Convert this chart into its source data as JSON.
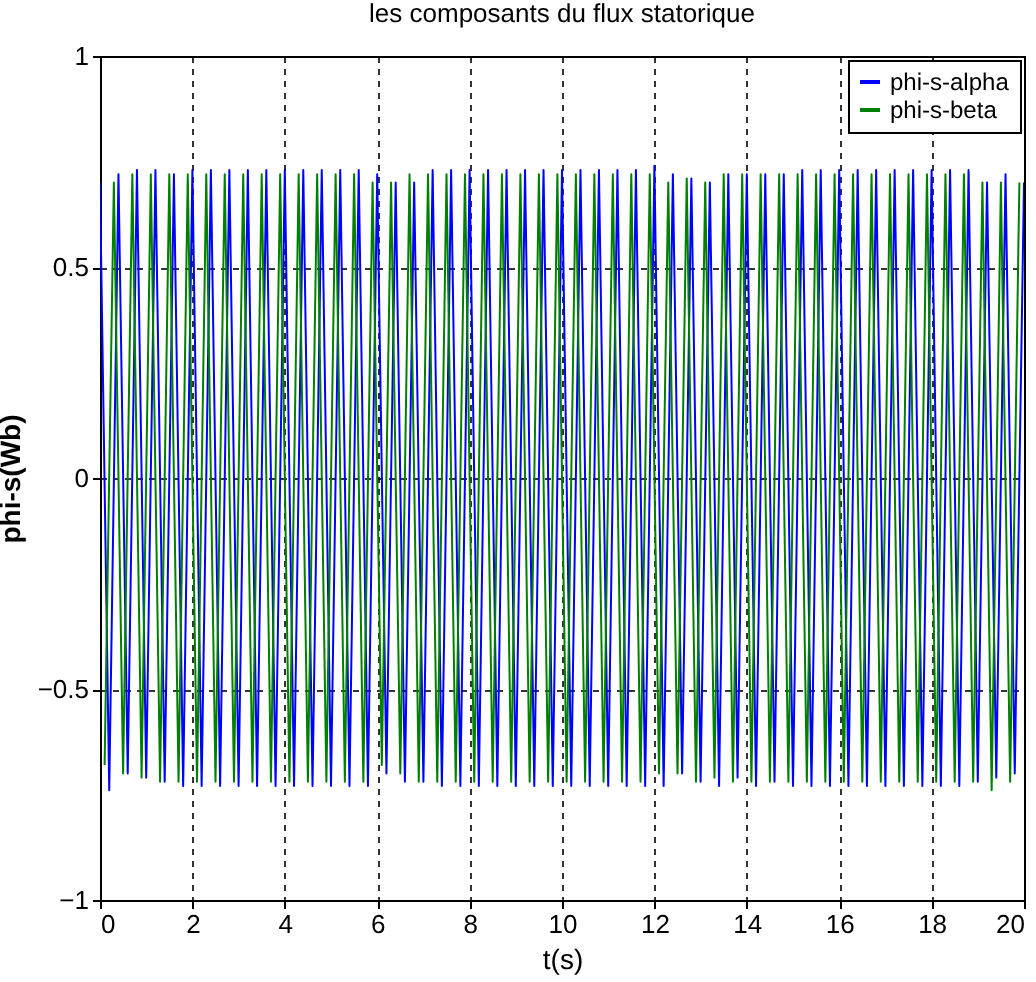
{
  "chart_data": {
    "type": "line",
    "title": "les composants du flux statorique",
    "xlabel": "t(s)",
    "ylabel": "phi-s(Wb)",
    "xlim": [
      0,
      20
    ],
    "ylim": [
      -1,
      1
    ],
    "xticks": [
      0,
      2,
      4,
      6,
      8,
      10,
      12,
      14,
      16,
      18,
      20
    ],
    "yticks": [
      -1,
      -0.5,
      0,
      0.5,
      1
    ],
    "grid": true,
    "legend": "top right",
    "line_style": "solid",
    "marker": "none",
    "series": [
      {
        "name": "phi-s-alpha",
        "color": "#0000ff",
        "x": [
          0,
          0.2,
          0.4,
          0.6,
          0.8,
          1,
          1.2,
          1.4,
          1.6,
          1.8,
          2,
          2.2,
          2.4,
          2.6,
          2.8,
          3,
          3.2,
          3.4,
          3.6,
          3.8,
          4,
          4.2,
          4.4,
          4.6,
          4.8,
          5,
          5.2,
          5.4,
          5.6,
          5.8,
          6,
          6.2,
          6.4,
          6.6,
          6.8,
          7,
          7.2,
          7.4,
          7.6,
          7.8,
          8,
          8.2,
          8.4,
          8.6,
          8.8,
          9,
          9.2,
          9.4,
          9.6,
          9.8,
          10,
          10.2,
          10.4,
          10.6,
          10.8,
          11,
          11.2,
          11.4,
          11.6,
          11.8,
          12,
          12.2,
          12.4,
          12.6,
          12.8,
          13,
          13.2,
          13.4,
          13.6,
          13.8,
          14,
          14.2,
          14.4,
          14.6,
          14.8,
          15,
          15.2,
          15.4,
          15.6,
          15.8,
          16,
          16.2,
          16.4,
          16.6,
          16.8,
          17,
          17.2,
          17.4,
          17.6,
          17.8,
          18,
          18.2,
          18.4,
          18.6,
          18.8,
          19,
          19.2,
          19.4,
          19.6,
          19.8,
          20
        ],
        "values": [
          0.7,
          -0.74,
          0.72,
          -0.7,
          0.73,
          -0.71,
          0.73,
          -0.72,
          0.72,
          -0.73,
          0.73,
          -0.73,
          0.73,
          -0.73,
          0.73,
          -0.73,
          0.73,
          -0.73,
          0.73,
          -0.73,
          0.73,
          -0.73,
          0.73,
          -0.73,
          0.73,
          -0.73,
          0.73,
          -0.73,
          0.73,
          -0.73,
          0.72,
          -0.7,
          0.7,
          -0.72,
          0.7,
          -0.72,
          0.73,
          -0.73,
          0.73,
          -0.73,
          0.73,
          -0.73,
          0.73,
          -0.73,
          0.73,
          -0.73,
          0.73,
          -0.73,
          0.73,
          -0.73,
          0.73,
          -0.73,
          0.73,
          -0.73,
          0.73,
          -0.73,
          0.73,
          -0.73,
          0.73,
          -0.73,
          0.74,
          -0.73,
          0.72,
          -0.7,
          0.71,
          -0.72,
          0.7,
          -0.73,
          0.72,
          -0.71,
          0.72,
          -0.73,
          0.72,
          -0.72,
          0.72,
          -0.73,
          0.73,
          -0.73,
          0.73,
          -0.73,
          0.73,
          -0.73,
          0.73,
          -0.73,
          0.73,
          -0.73,
          0.73,
          -0.73,
          0.73,
          -0.73,
          0.73,
          -0.73,
          0.73,
          -0.73,
          0.73,
          -0.72,
          0.7,
          -0.71,
          0.72,
          -0.7,
          0.7
        ]
      },
      {
        "name": "phi-s-beta",
        "color": "#008000",
        "x": [
          0.1,
          0.3,
          0.5,
          0.7,
          0.9,
          1.1,
          1.3,
          1.5,
          1.7,
          1.9,
          2.1,
          2.3,
          2.5,
          2.7,
          2.9,
          3.1,
          3.3,
          3.5,
          3.7,
          3.9,
          4.1,
          4.3,
          4.5,
          4.7,
          4.9,
          5.1,
          5.3,
          5.5,
          5.7,
          5.9,
          6.1,
          6.3,
          6.5,
          6.7,
          6.9,
          7.1,
          7.3,
          7.5,
          7.7,
          7.9,
          8.1,
          8.3,
          8.5,
          8.7,
          8.9,
          9.1,
          9.3,
          9.5,
          9.7,
          9.9,
          10.1,
          10.3,
          10.5,
          10.7,
          10.9,
          11.1,
          11.3,
          11.5,
          11.7,
          11.9,
          12.1,
          12.3,
          12.5,
          12.7,
          12.9,
          13.1,
          13.3,
          13.5,
          13.7,
          13.9,
          14.1,
          14.3,
          14.5,
          14.7,
          14.9,
          15.1,
          15.3,
          15.5,
          15.7,
          15.9,
          16.1,
          16.3,
          16.5,
          16.7,
          16.9,
          17.1,
          17.3,
          17.5,
          17.7,
          17.9,
          18.1,
          18.3,
          18.5,
          18.7,
          18.9,
          19.1,
          19.3,
          19.5,
          19.7,
          19.9
        ],
        "values": [
          -0.68,
          0.7,
          -0.7,
          0.72,
          -0.71,
          0.72,
          -0.72,
          0.72,
          -0.72,
          0.72,
          -0.72,
          0.72,
          -0.72,
          0.72,
          -0.72,
          0.72,
          -0.72,
          0.72,
          -0.72,
          0.72,
          -0.72,
          0.72,
          -0.72,
          0.72,
          -0.72,
          0.72,
          -0.72,
          0.72,
          -0.72,
          0.7,
          -0.68,
          0.7,
          -0.7,
          0.72,
          -0.72,
          0.72,
          -0.72,
          0.72,
          -0.72,
          0.72,
          -0.72,
          0.72,
          -0.72,
          0.72,
          -0.72,
          0.72,
          -0.72,
          0.72,
          -0.72,
          0.72,
          -0.72,
          0.72,
          -0.72,
          0.72,
          -0.72,
          0.72,
          -0.72,
          0.72,
          -0.72,
          0.72,
          -0.7,
          0.7,
          -0.7,
          0.71,
          -0.72,
          0.7,
          -0.71,
          0.72,
          -0.72,
          0.72,
          -0.72,
          0.72,
          -0.72,
          0.72,
          -0.72,
          0.72,
          -0.72,
          0.72,
          -0.72,
          0.72,
          -0.72,
          0.72,
          -0.72,
          0.72,
          -0.72,
          0.72,
          -0.72,
          0.72,
          -0.72,
          0.72,
          -0.72,
          0.72,
          -0.72,
          0.72,
          -0.72,
          0.7,
          -0.74,
          0.7,
          -0.72,
          0.7
        ]
      }
    ]
  }
}
